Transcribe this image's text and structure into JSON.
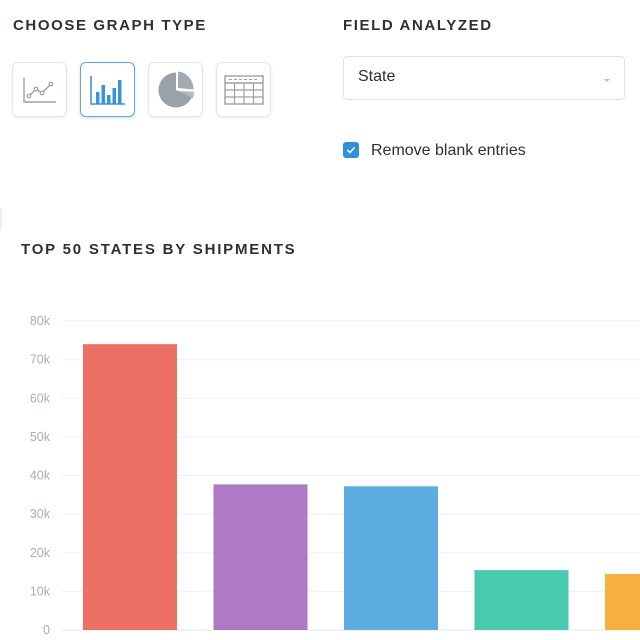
{
  "graph_type": {
    "heading": "CHOOSE GRAPH TYPE",
    "options": [
      {
        "type": "line",
        "icon": "line-chart-icon",
        "active": false
      },
      {
        "type": "bar",
        "icon": "bar-chart-icon",
        "active": true
      },
      {
        "type": "pie",
        "icon": "pie-chart-icon",
        "active": false
      },
      {
        "type": "table",
        "icon": "table-icon",
        "active": false
      }
    ]
  },
  "field": {
    "heading": "FIELD ANALYZED",
    "selected": "State",
    "remove_blank_label": "Remove blank entries",
    "remove_blank_checked": true
  },
  "colors": {
    "accent": "#2e8fdf",
    "active_border": "#5fa8e0",
    "icon_gray": "#9aa1a9",
    "bar_icon_blue": "#3a93dc"
  },
  "chart_data": {
    "type": "bar",
    "title": "TOP 50 STATES BY SHIPMENTS",
    "categories": [
      "",
      "",
      "",
      "",
      ""
    ],
    "values": [
      74000,
      37700,
      37200,
      15500,
      14500
    ],
    "colors": [
      "#ec7063",
      "#af7ac5",
      "#5dade2",
      "#48c9b0",
      "#f5b041"
    ],
    "ylim": [
      0,
      80000
    ],
    "yticks": [
      0,
      10000,
      20000,
      30000,
      40000,
      50000,
      60000,
      70000,
      80000
    ],
    "ytick_labels": [
      "0",
      "10k",
      "20k",
      "30k",
      "40k",
      "50k",
      "60k",
      "70k",
      "80k"
    ],
    "grid": true,
    "legend": "none"
  }
}
